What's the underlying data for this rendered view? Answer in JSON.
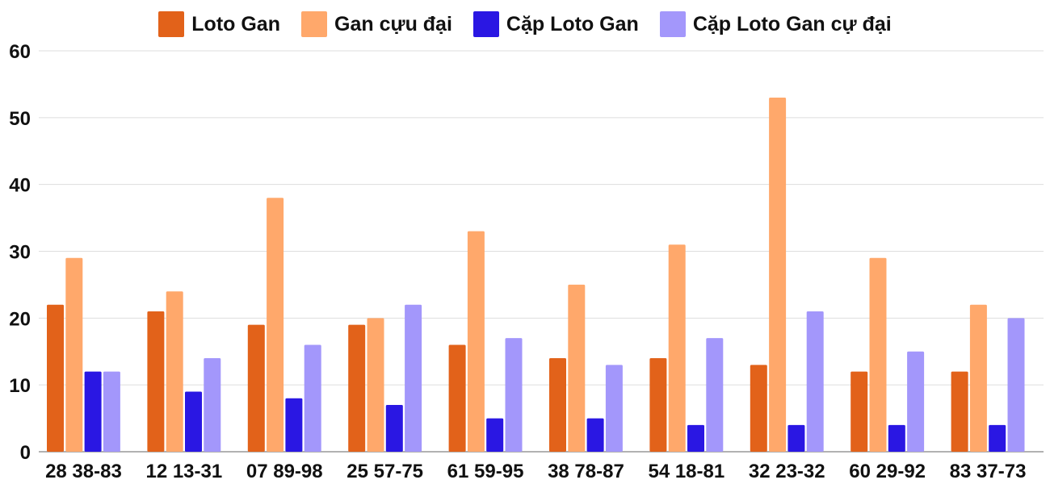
{
  "chart_data": {
    "type": "bar",
    "title": "",
    "xlabel": "",
    "ylabel": "",
    "ylim": [
      0,
      60
    ],
    "yticks": [
      0,
      10,
      20,
      30,
      40,
      50,
      60
    ],
    "grid": true,
    "legend_position": "top-center",
    "categories": [
      "28 38-83",
      "12 13-31",
      "07 89-98",
      "25 57-75",
      "61 59-95",
      "38 78-87",
      "54 18-81",
      "32 23-32",
      "60 29-92",
      "83 37-73"
    ],
    "series": [
      {
        "name": "Loto Gan",
        "color": "#e2621a",
        "values": [
          22,
          21,
          19,
          19,
          16,
          14,
          14,
          13,
          12,
          12
        ]
      },
      {
        "name": "Gan cựu đại",
        "color": "#ffa86b",
        "values": [
          29,
          24,
          38,
          20,
          33,
          25,
          31,
          53,
          29,
          22
        ]
      },
      {
        "name": "Cặp Loto Gan",
        "color": "#2a17e3",
        "values": [
          12,
          9,
          8,
          7,
          5,
          5,
          4,
          4,
          4,
          4
        ]
      },
      {
        "name": "Cặp Loto Gan cự đại",
        "color": "#a397fb",
        "values": [
          12,
          14,
          16,
          22,
          17,
          13,
          17,
          21,
          15,
          20
        ]
      }
    ]
  }
}
